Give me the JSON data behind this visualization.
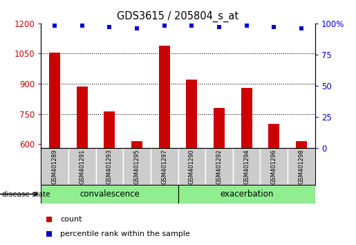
{
  "title": "GDS3615 / 205804_s_at",
  "samples": [
    "GSM401289",
    "GSM401291",
    "GSM401293",
    "GSM401295",
    "GSM401297",
    "GSM401290",
    "GSM401292",
    "GSM401294",
    "GSM401296",
    "GSM401298"
  ],
  "counts": [
    1055,
    885,
    763,
    615,
    1090,
    920,
    780,
    878,
    700,
    614
  ],
  "percentiles": [
    98,
    98,
    97,
    96,
    98,
    98,
    97,
    98,
    97,
    96
  ],
  "bar_color": "#CC0000",
  "dot_color": "#0000CC",
  "ylim_left": [
    580,
    1200
  ],
  "ylim_right": [
    0,
    100
  ],
  "yticks_left": [
    600,
    750,
    900,
    1050,
    1200
  ],
  "yticks_right": [
    0,
    25,
    50,
    75,
    100
  ],
  "grid_values": [
    750,
    900,
    1050
  ],
  "label_count": "count",
  "label_percentile": "percentile rank within the sample",
  "group_split": 5,
  "group1_label": "convalescence",
  "group2_label": "exacerbation",
  "group_color": "#90EE90",
  "sample_box_color": "#CCCCCC",
  "disease_state_label": "disease state"
}
